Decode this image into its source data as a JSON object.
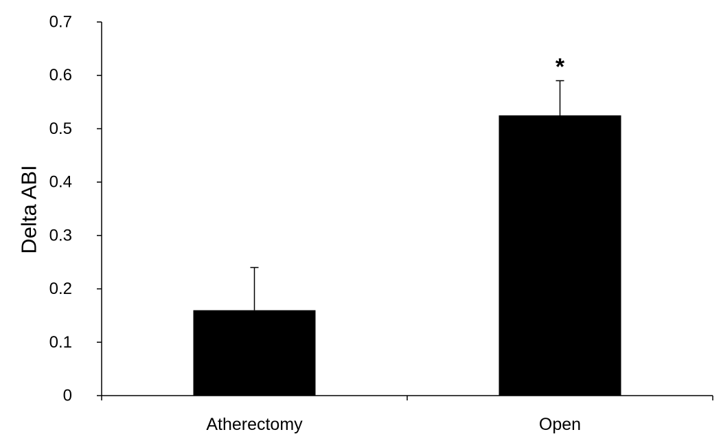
{
  "chart_data": {
    "type": "bar",
    "categories": [
      "Atherectomy",
      "Open"
    ],
    "values": [
      0.16,
      0.525
    ],
    "error_upper": [
      0.24,
      0.59
    ],
    "annotations": [
      "",
      "*"
    ],
    "ylabel": "Delta ABI",
    "xlabel": "",
    "ylim": [
      0,
      0.7
    ],
    "yticks": [
      "0",
      "0.1",
      "0.2",
      "0.3",
      "0.4",
      "0.5",
      "0.6",
      "0.7"
    ],
    "grid": false,
    "bar_color": "#000000",
    "axis_color": "#000000"
  }
}
